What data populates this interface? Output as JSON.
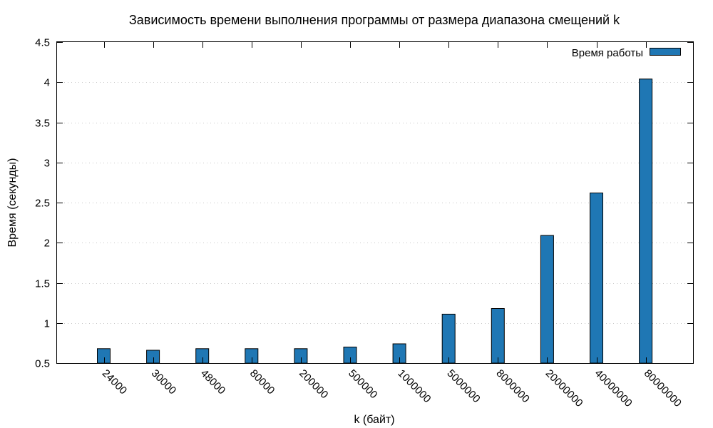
{
  "chart_data": {
    "type": "bar",
    "title": "Зависимость времени выполнения программы от размера диапазона смещений k",
    "xlabel": "k (байт)",
    "ylabel": "Время (секунды)",
    "categories": [
      "24000",
      "30000",
      "48000",
      "80000",
      "200000",
      "500000",
      "1000000",
      "5000000",
      "8000000",
      "20000000",
      "40000000",
      "80000000"
    ],
    "series": [
      {
        "name": "Время работы",
        "color": "#1f77b4",
        "values": [
          0.68,
          0.66,
          0.68,
          0.68,
          0.68,
          0.7,
          0.74,
          1.11,
          1.18,
          2.09,
          2.62,
          4.04
        ]
      }
    ],
    "ylim": [
      0.5,
      4.5
    ],
    "yticks": [
      "0.5",
      "1",
      "1.5",
      "2",
      "2.5",
      "3",
      "3.5",
      "4",
      "4.5"
    ],
    "grid": true,
    "legend_position": "top-right"
  }
}
